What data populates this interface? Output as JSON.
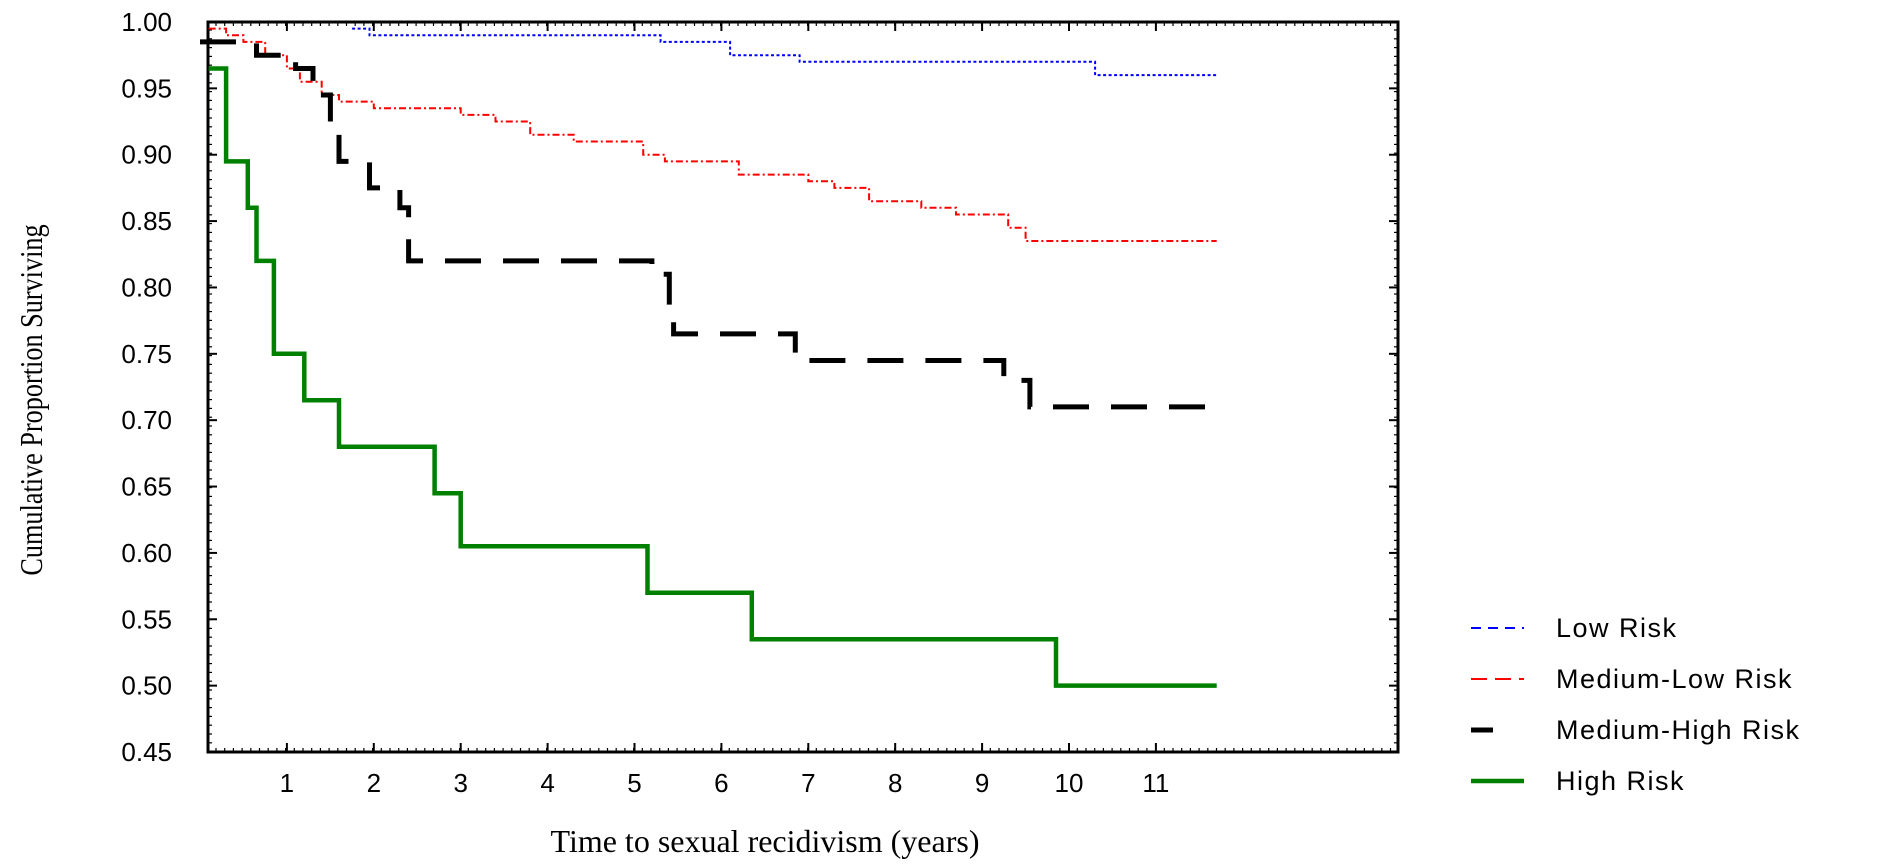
{
  "chart_data": {
    "type": "line",
    "step": true,
    "title": "",
    "xlabel": "Time to sexual recidivism (years)",
    "ylabel": "Cumulative Proportion Surviving",
    "xlim": [
      0,
      13.6
    ],
    "ylim": [
      0.45,
      1.0
    ],
    "x_ticks": [
      1,
      2,
      3,
      4,
      5,
      6,
      7,
      8,
      9,
      10,
      11
    ],
    "x_tick_labels": [
      "1",
      "2",
      "3",
      "4",
      "5",
      "6",
      "7",
      "8",
      "9",
      "10",
      "11"
    ],
    "y_ticks": [
      1.0,
      0.95,
      0.9,
      0.85,
      0.8,
      0.75,
      0.7,
      0.65,
      0.6,
      0.55,
      0.5,
      0.45
    ],
    "y_tick_labels": [
      "1.00",
      "0.95",
      "0.90",
      "0.85",
      "0.80",
      "0.75",
      "0.70",
      "0.65",
      "0.60",
      "0.55",
      "0.50",
      "0.45"
    ],
    "grid": false,
    "legend_position": "bottom-right, outside plot",
    "series": [
      {
        "name": "Low Risk",
        "color": "#0000ff",
        "dash": "dotted",
        "points": [
          [
            1.75,
            0.995
          ],
          [
            1.95,
            0.99
          ],
          [
            5.1,
            0.99
          ],
          [
            5.3,
            0.985
          ],
          [
            6.1,
            0.975
          ],
          [
            6.9,
            0.97
          ],
          [
            10.1,
            0.97
          ],
          [
            10.3,
            0.96
          ],
          [
            11.7,
            0.96
          ]
        ]
      },
      {
        "name": "Medium-Low Risk",
        "color": "#ff0000",
        "dash": "dash-dot",
        "points": [
          [
            0.1,
            0.995
          ],
          [
            0.3,
            0.99
          ],
          [
            0.5,
            0.985
          ],
          [
            0.75,
            0.975
          ],
          [
            1.0,
            0.965
          ],
          [
            1.15,
            0.955
          ],
          [
            1.4,
            0.945
          ],
          [
            1.6,
            0.94
          ],
          [
            2.0,
            0.935
          ],
          [
            3.0,
            0.93
          ],
          [
            3.4,
            0.925
          ],
          [
            3.8,
            0.915
          ],
          [
            4.3,
            0.91
          ],
          [
            5.1,
            0.9
          ],
          [
            5.35,
            0.895
          ],
          [
            6.2,
            0.885
          ],
          [
            7.0,
            0.88
          ],
          [
            7.3,
            0.875
          ],
          [
            7.7,
            0.865
          ],
          [
            8.3,
            0.86
          ],
          [
            8.7,
            0.855
          ],
          [
            9.3,
            0.845
          ],
          [
            9.5,
            0.835
          ],
          [
            11.7,
            0.835
          ]
        ]
      },
      {
        "name": "Medium-High Risk",
        "color": "#000000",
        "dash": "long-dash",
        "points": [
          [
            0.0,
            0.985
          ],
          [
            0.65,
            0.975
          ],
          [
            1.1,
            0.965
          ],
          [
            1.3,
            0.945
          ],
          [
            1.5,
            0.925
          ],
          [
            1.6,
            0.895
          ],
          [
            1.95,
            0.875
          ],
          [
            2.3,
            0.86
          ],
          [
            2.4,
            0.82
          ],
          [
            5.2,
            0.81
          ],
          [
            5.4,
            0.785
          ],
          [
            5.45,
            0.765
          ],
          [
            6.85,
            0.745
          ],
          [
            9.25,
            0.73
          ],
          [
            9.55,
            0.71
          ],
          [
            11.7,
            0.71
          ]
        ]
      },
      {
        "name": "High Risk",
        "color": "#008000",
        "dash": "solid",
        "points": [
          [
            0.1,
            0.965
          ],
          [
            0.3,
            0.895
          ],
          [
            0.55,
            0.86
          ],
          [
            0.65,
            0.82
          ],
          [
            0.85,
            0.75
          ],
          [
            1.2,
            0.715
          ],
          [
            1.6,
            0.68
          ],
          [
            2.7,
            0.645
          ],
          [
            3.0,
            0.605
          ],
          [
            5.15,
            0.57
          ],
          [
            6.35,
            0.535
          ],
          [
            9.85,
            0.5
          ],
          [
            11.7,
            0.5
          ]
        ]
      }
    ]
  }
}
